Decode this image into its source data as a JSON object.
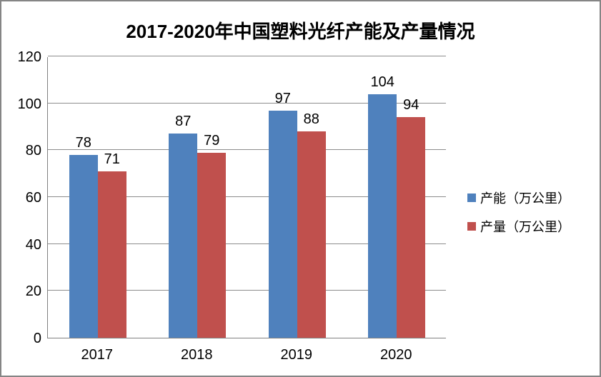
{
  "title": "2017-2020年中国塑料光纤产能及产量情况",
  "frame_border_color": "#858585",
  "chart_data": {
    "type": "bar",
    "title": "2017-2020年中国塑料光纤产能及产量情况",
    "categories": [
      "2017",
      "2018",
      "2019",
      "2020"
    ],
    "series": [
      {
        "name": "产能（万公里）",
        "color": "#4F81BD",
        "values": [
          78,
          87,
          97,
          104
        ]
      },
      {
        "name": "产量（万公里）",
        "color": "#C0504D",
        "values": [
          71,
          79,
          88,
          94
        ]
      }
    ],
    "xlabel": "",
    "ylabel": "",
    "ylim": [
      0,
      120
    ],
    "y_ticks": [
      0,
      20,
      40,
      60,
      80,
      100,
      120
    ],
    "grid": true,
    "gridline_color": "#8c8c8c",
    "axis_color": "#808080",
    "legend_position": "right",
    "value_labels_shown": true
  }
}
